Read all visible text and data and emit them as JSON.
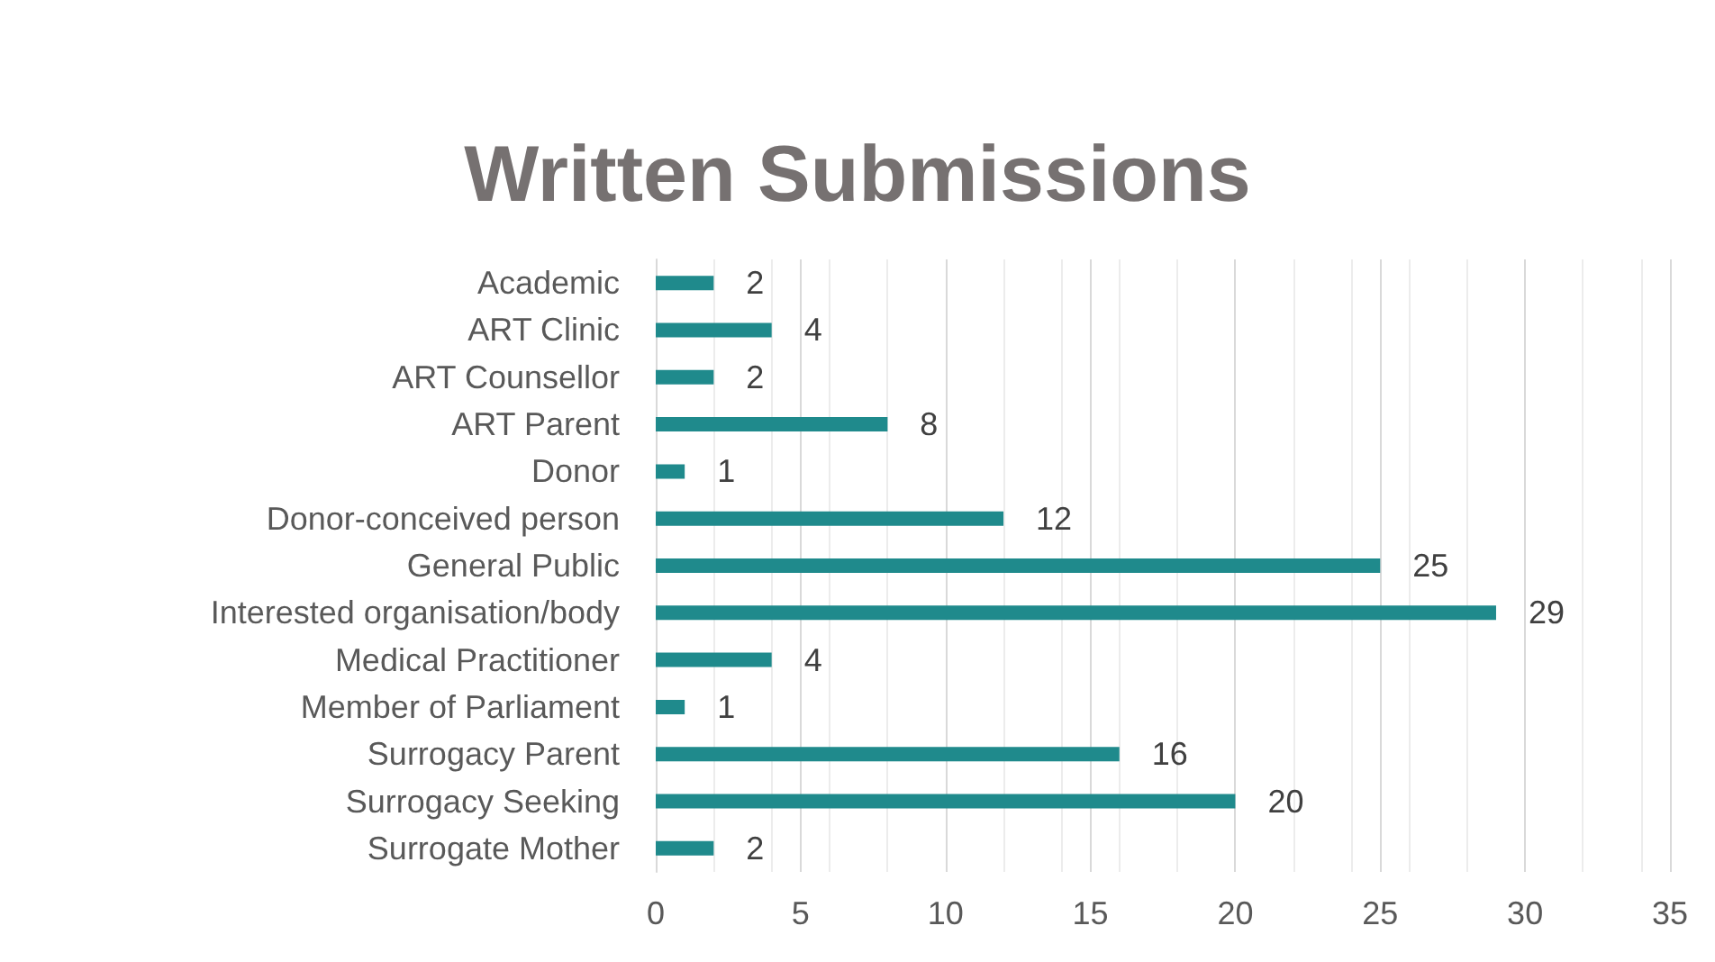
{
  "chart_data": {
    "type": "bar",
    "orientation": "horizontal",
    "title": "Written Submissions",
    "categories": [
      "Academic",
      "ART Clinic",
      "ART Counsellor",
      "ART Parent",
      "Donor",
      "Donor-conceived person",
      "General Public",
      "Interested organisation/body",
      "Medical Practitioner",
      "Member of Parliament",
      "Surrogacy Parent",
      "Surrogacy Seeking",
      "Surrogate Mother"
    ],
    "values": [
      2,
      4,
      2,
      8,
      1,
      12,
      25,
      29,
      4,
      1,
      16,
      20,
      2
    ],
    "color": "#1f8a8c",
    "xlim": [
      0,
      35
    ],
    "xticks": [
      0,
      5,
      10,
      15,
      20,
      25,
      30,
      35
    ],
    "grid": "x",
    "data_labels": true
  }
}
